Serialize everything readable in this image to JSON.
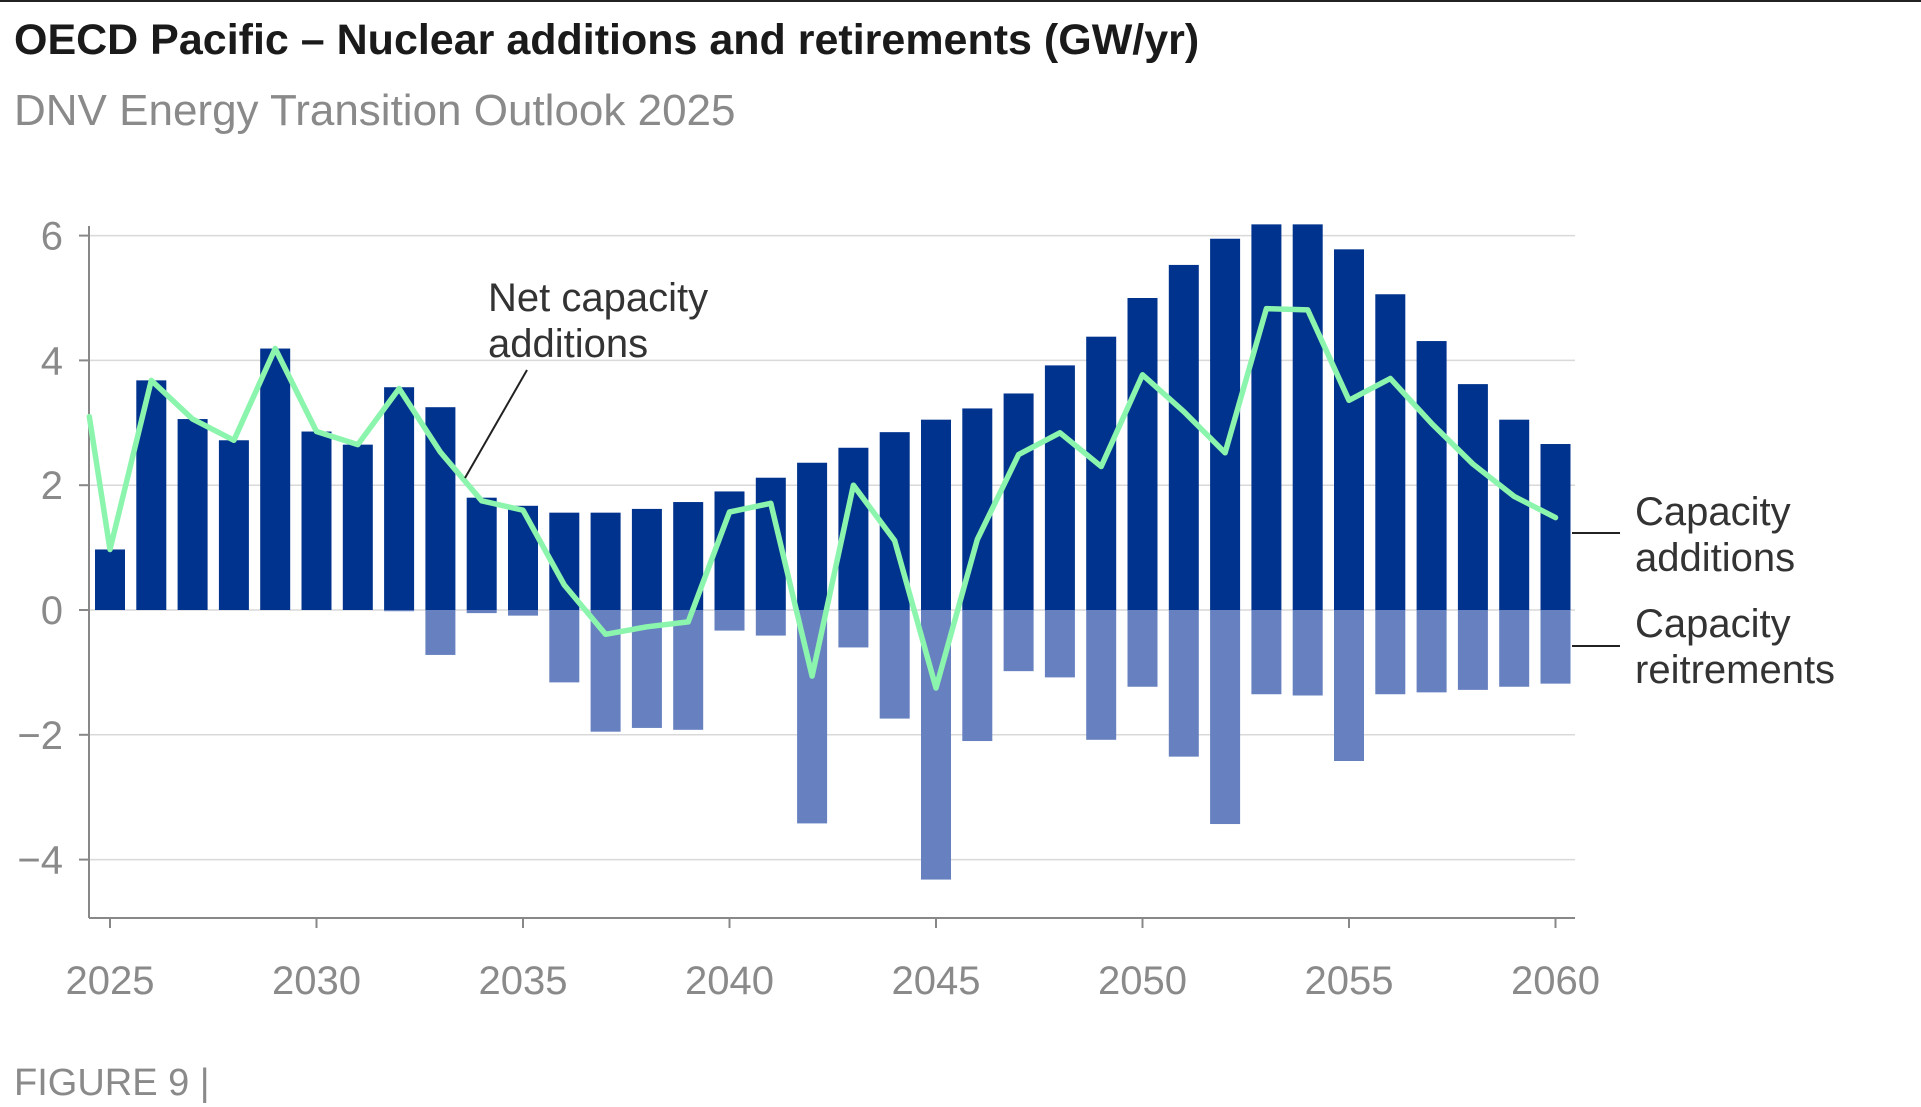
{
  "title": "OECD Pacific – Nuclear additions and retirements (GW/yr)",
  "subtitle": "DNV Energy Transition Outlook 2025",
  "figure_label": "FIGURE 9 |",
  "colors": {
    "additions": "#00338d",
    "retirements": "#6680c0",
    "net_line": "#8cf5ad",
    "grid": "#d9d9d9",
    "axis": "#888888",
    "text_muted": "#8a8a8a"
  },
  "chart_data": {
    "type": "bar",
    "title": "OECD Pacific – Nuclear additions and retirements (GW/yr)",
    "xlabel": "",
    "ylabel": "GW/yr",
    "ylim": [
      -5,
      6.2
    ],
    "xlim": [
      2024.5,
      2060.6
    ],
    "x_ticks": [
      2025,
      2030,
      2035,
      2040,
      2045,
      2050,
      2055,
      2060
    ],
    "y_ticks": [
      -4,
      -2,
      0,
      2,
      4,
      6
    ],
    "y_tick_labels": [
      "−4",
      "−2",
      "0",
      "2",
      "4",
      "6"
    ],
    "grid": true,
    "categories": [
      2025,
      2026,
      2027,
      2028,
      2029,
      2030,
      2031,
      2032,
      2033,
      2034,
      2035,
      2036,
      2037,
      2038,
      2039,
      2040,
      2041,
      2042,
      2043,
      2044,
      2045,
      2046,
      2047,
      2048,
      2049,
      2050,
      2051,
      2052,
      2053,
      2054,
      2055,
      2056,
      2057,
      2058,
      2059,
      2060
    ],
    "series": [
      {
        "name": "Capacity additions",
        "type": "bar",
        "values": [
          0.97,
          3.68,
          3.06,
          2.72,
          4.19,
          2.86,
          2.65,
          3.57,
          3.25,
          1.8,
          1.67,
          1.56,
          1.56,
          1.62,
          1.73,
          1.9,
          2.12,
          2.36,
          2.6,
          2.85,
          3.05,
          3.23,
          3.47,
          3.92,
          4.38,
          5.0,
          5.53,
          5.95,
          6.18,
          6.18,
          5.78,
          5.06,
          4.31,
          3.62,
          3.05,
          2.66
        ]
      },
      {
        "name": "Capacity reitrements",
        "type": "bar",
        "values": [
          0,
          0,
          0,
          0,
          0,
          0,
          0,
          -0.02,
          -0.72,
          -0.05,
          -0.09,
          -1.16,
          -1.95,
          -1.89,
          -1.92,
          -0.33,
          -0.41,
          -3.42,
          -0.6,
          -1.74,
          -4.32,
          -2.1,
          -0.98,
          -1.08,
          -2.08,
          -1.23,
          -2.35,
          -3.43,
          -1.35,
          -1.37,
          -2.42,
          -1.35,
          -1.32,
          -1.28,
          -1.23,
          -1.18
        ]
      },
      {
        "name": "Net capacity additions",
        "type": "line",
        "x": [
          2024.5,
          2025,
          2026,
          2027,
          2028,
          2029,
          2030,
          2031,
          2032,
          2033,
          2034,
          2035,
          2036,
          2037,
          2038,
          2039,
          2040,
          2041,
          2042,
          2043,
          2044,
          2045,
          2046,
          2047,
          2048,
          2049,
          2050,
          2051,
          2052,
          2053,
          2054,
          2055,
          2056,
          2057,
          2058,
          2059,
          2060
        ],
        "values": [
          3.1,
          0.97,
          3.68,
          3.06,
          2.72,
          4.19,
          2.86,
          2.65,
          3.55,
          2.53,
          1.75,
          1.6,
          0.4,
          -0.39,
          -0.27,
          -0.19,
          1.57,
          1.71,
          -1.06,
          2.0,
          1.11,
          -1.25,
          1.13,
          2.49,
          2.84,
          2.3,
          3.77,
          3.18,
          2.52,
          4.83,
          4.81,
          3.36,
          3.71,
          2.99,
          2.34,
          1.82,
          1.48
        ]
      }
    ],
    "annotations": [
      {
        "lines": [
          "Net capacity",
          "additions"
        ],
        "target": "Net capacity additions"
      },
      {
        "lines": [
          "Capacity",
          "additions"
        ],
        "target": "Capacity additions"
      },
      {
        "lines": [
          "Capacity",
          "reitrements"
        ],
        "target": "Capacity reitrements"
      }
    ]
  }
}
